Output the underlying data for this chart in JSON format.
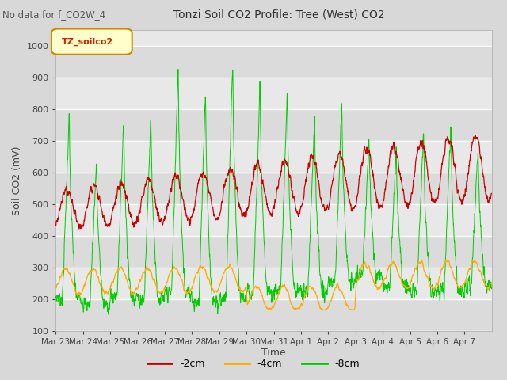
{
  "title": "Tonzi Soil CO2 Profile: Tree (West) CO2",
  "subtitle": "No data for f_CO2W_4",
  "ylabel": "Soil CO2 (mV)",
  "xlabel": "Time",
  "legend_label": "TZ_soilco2",
  "ylim": [
    100,
    1050
  ],
  "yticks": [
    100,
    200,
    300,
    400,
    500,
    600,
    700,
    800,
    900,
    1000
  ],
  "series_labels": [
    "-2cm",
    "-4cm",
    "-8cm"
  ],
  "series_colors": [
    "#cc0000",
    "#ffaa00",
    "#00cc00"
  ],
  "bg_color": "#d8d8d8",
  "plot_bg_color": "#e8e8e8",
  "grid_color": "#ffffff",
  "x_tick_labels": [
    "Mar 23",
    "Mar 24",
    "Mar 25",
    "Mar 26",
    "Mar 27",
    "Mar 28",
    "Mar 29",
    "Mar 30",
    "Mar 31",
    "Apr 1",
    "Apr 2",
    "Apr 3",
    "Apr 4",
    "Apr 5",
    "Apr 6",
    "Apr 7"
  ]
}
